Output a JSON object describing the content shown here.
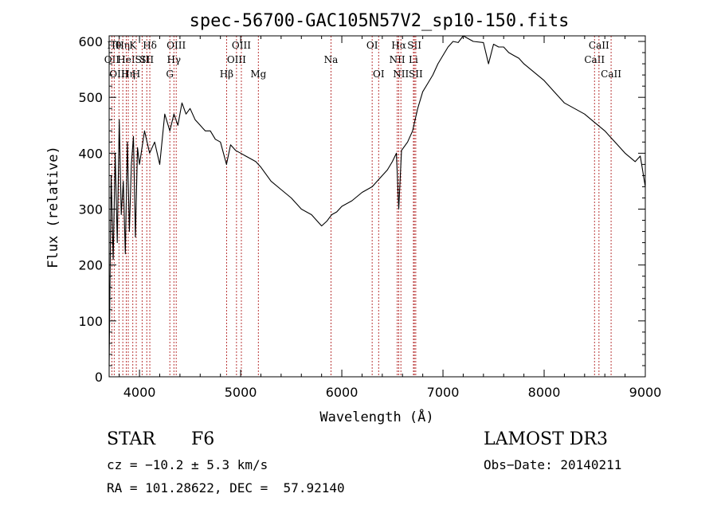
{
  "chart_data": {
    "type": "line",
    "title": "spec-56700-GAC105N57V2_sp10-150.fits",
    "xlabel": "Wavelength (Å)",
    "ylabel": "Flux (relative)",
    "xlim": [
      3700,
      9000
    ],
    "ylim": [
      0,
      610
    ],
    "xticks": [
      4000,
      5000,
      6000,
      7000,
      8000,
      9000
    ],
    "xtick_labels": [
      "4000",
      "5000",
      "6000",
      "7000",
      "8000",
      "9000"
    ],
    "yticks": [
      0,
      100,
      200,
      300,
      400,
      500,
      600
    ],
    "ytick_labels": [
      "0",
      "100",
      "200",
      "300",
      "400",
      "500",
      "600"
    ],
    "series": [
      {
        "name": "spectrum",
        "x": [
          3700,
          3720,
          3740,
          3760,
          3780,
          3800,
          3820,
          3840,
          3860,
          3880,
          3900,
          3920,
          3940,
          3960,
          3980,
          4000,
          4050,
          4100,
          4150,
          4200,
          4250,
          4300,
          4340,
          4380,
          4420,
          4460,
          4500,
          4550,
          4600,
          4650,
          4700,
          4750,
          4800,
          4860,
          4900,
          4950,
          5000,
          5050,
          5100,
          5150,
          5200,
          5300,
          5400,
          5500,
          5600,
          5700,
          5750,
          5800,
          5850,
          5900,
          5950,
          6000,
          6100,
          6200,
          6300,
          6400,
          6450,
          6500,
          6540,
          6563,
          6590,
          6650,
          6700,
          6750,
          6800,
          6850,
          6900,
          6950,
          7000,
          7050,
          7100,
          7150,
          7200,
          7300,
          7400,
          7450,
          7500,
          7550,
          7600,
          7650,
          7700,
          7750,
          7800,
          7900,
          8000,
          8100,
          8200,
          8300,
          8400,
          8500,
          8600,
          8700,
          8800,
          8900,
          8950,
          9000
        ],
        "values": [
          20,
          360,
          210,
          400,
          240,
          460,
          290,
          350,
          220,
          420,
          260,
          380,
          430,
          250,
          410,
          380,
          440,
          400,
          420,
          380,
          470,
          440,
          470,
          450,
          490,
          470,
          480,
          460,
          450,
          440,
          440,
          425,
          420,
          380,
          415,
          405,
          400,
          395,
          390,
          385,
          375,
          350,
          335,
          320,
          300,
          290,
          280,
          270,
          278,
          290,
          295,
          305,
          315,
          330,
          340,
          360,
          370,
          385,
          400,
          300,
          405,
          420,
          440,
          480,
          510,
          525,
          540,
          560,
          575,
          590,
          600,
          598,
          610,
          600,
          598,
          560,
          595,
          590,
          590,
          580,
          575,
          570,
          560,
          545,
          530,
          510,
          490,
          480,
          470,
          455,
          440,
          420,
          400,
          385,
          395,
          340
        ]
      }
    ],
    "line_markers": [
      {
        "x": 3727,
        "row": 1,
        "label": "OII"
      },
      {
        "x": 3750,
        "row": 0,
        "label": "Hθ"
      },
      {
        "x": 3797,
        "row": 2,
        "label": "OIII"
      },
      {
        "x": 3835,
        "row": 0,
        "label": "Hη"
      },
      {
        "x": 3869,
        "row": 1,
        "label": "HeI"
      },
      {
        "x": 3889,
        "row": 2,
        "label": "Hη"
      },
      {
        "x": 3934,
        "row": 0,
        "label": "K"
      },
      {
        "x": 3968,
        "row": 2,
        "label": "H"
      },
      {
        "x": 4026,
        "row": 1,
        "label": "SII"
      },
      {
        "x": 4102,
        "row": 0,
        "label": "Hδ"
      },
      {
        "x": 4072,
        "row": 1,
        "label": "SII"
      },
      {
        "x": 4300,
        "row": 2,
        "label": "G"
      },
      {
        "x": 4340,
        "row": 1,
        "label": "Hγ"
      },
      {
        "x": 4363,
        "row": 0,
        "label": "OIII"
      },
      {
        "x": 4861,
        "row": 2,
        "label": "Hβ"
      },
      {
        "x": 4959,
        "row": 1,
        "label": "OIII"
      },
      {
        "x": 5007,
        "row": 0,
        "label": "OIII"
      },
      {
        "x": 5175,
        "row": 2,
        "label": "Mg"
      },
      {
        "x": 5893,
        "row": 1,
        "label": "Na"
      },
      {
        "x": 6300,
        "row": 0,
        "label": "OI"
      },
      {
        "x": 6364,
        "row": 2,
        "label": "OI"
      },
      {
        "x": 6548,
        "row": 1,
        "label": "NII"
      },
      {
        "x": 6563,
        "row": 0,
        "label": "Hα"
      },
      {
        "x": 6584,
        "row": 2,
        "label": "NII"
      },
      {
        "x": 6708,
        "row": 1,
        "label": "Li"
      },
      {
        "x": 6717,
        "row": 0,
        "label": "SII"
      },
      {
        "x": 6731,
        "row": 2,
        "label": "SII"
      },
      {
        "x": 8498,
        "row": 1,
        "label": "CaII"
      },
      {
        "x": 8542,
        "row": 0,
        "label": "CaII"
      },
      {
        "x": 8662,
        "row": 2,
        "label": "CaII"
      }
    ]
  },
  "info": {
    "object_class": "STAR",
    "subclass": "F6",
    "survey": "LAMOST DR3",
    "cz": "cz = −10.2 ± 5.3 km/s",
    "obs_date": "Obs−Date: 20140211",
    "coords": "RA = 101.28622, DEC =  57.92140"
  }
}
